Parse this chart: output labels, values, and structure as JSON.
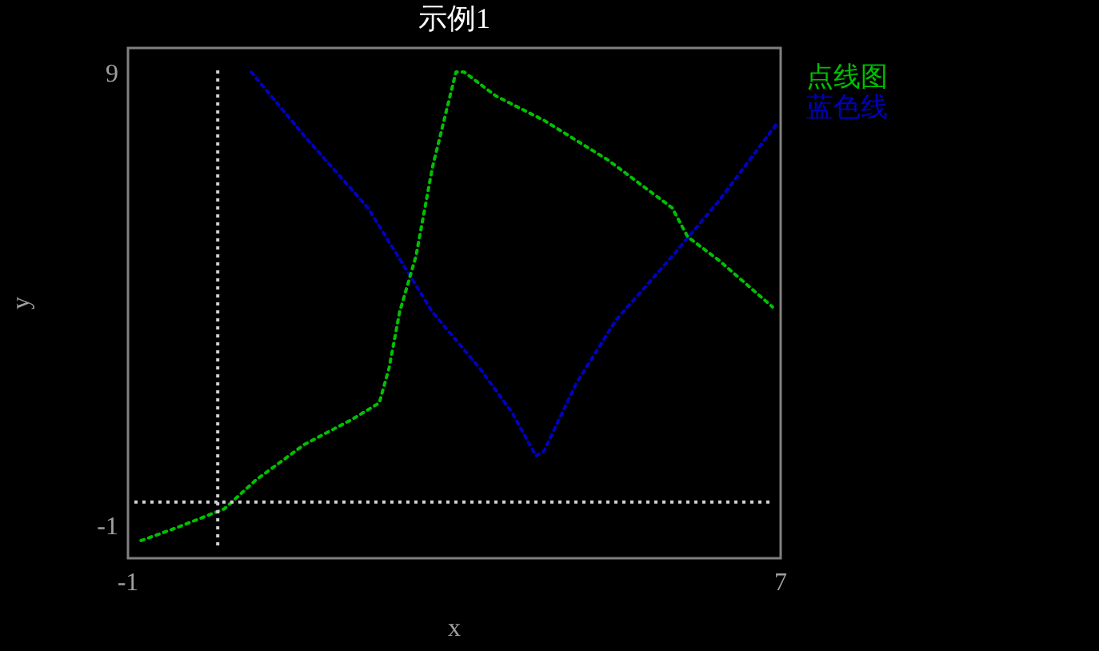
{
  "chart_data": {
    "type": "line",
    "title": "示例1",
    "xlabel": "x",
    "ylabel": "y",
    "xlim": [
      -1,
      7
    ],
    "ylim": [
      -1.67,
      9.6
    ],
    "xticks": [
      -1,
      7
    ],
    "yticks": [
      -1,
      9
    ],
    "grid": false,
    "legend": "top right",
    "marker": "none",
    "line_style": "dotted",
    "series": [
      {
        "name": "点线图",
        "color": "#00c000",
        "x": [
          -0.84,
          -0.41,
          0.18,
          0.57,
          1.16,
          1.75,
          2.08,
          2.2,
          2.33,
          2.53,
          2.73,
          3.02,
          3.12,
          3.51,
          4.1,
          4.88,
          5.67,
          5.86,
          6.25,
          6.9
        ],
        "values": [
          -1.28,
          -1,
          -0.58,
          0.06,
          0.84,
          1.4,
          1.76,
          2.53,
          3.77,
          5.0,
          6.95,
          9.07,
          9.07,
          8.54,
          8.0,
          7.13,
          6.07,
          5.43,
          4.9,
          3.88
        ]
      },
      {
        "name": "蓝色线",
        "color": "#0000c0",
        "x": [
          0.51,
          1.16,
          1.94,
          2.43,
          2.73,
          3.31,
          3.71,
          4.0,
          4.1,
          4.49,
          4.98,
          5.67,
          6.25,
          6.94
        ],
        "values": [
          9.07,
          7.66,
          6.07,
          4.65,
          3.77,
          2.53,
          1.54,
          0.59,
          0.7,
          2.18,
          3.59,
          5.0,
          6.24,
          7.9
        ]
      }
    ],
    "ref_lines": [
      {
        "axis": "x",
        "value": 0.1,
        "color": "#d0d0d0",
        "line_style": "dotted"
      },
      {
        "axis": "y",
        "value": -0.43,
        "color": "#d0d0d0",
        "line_style": "dotted"
      }
    ]
  }
}
